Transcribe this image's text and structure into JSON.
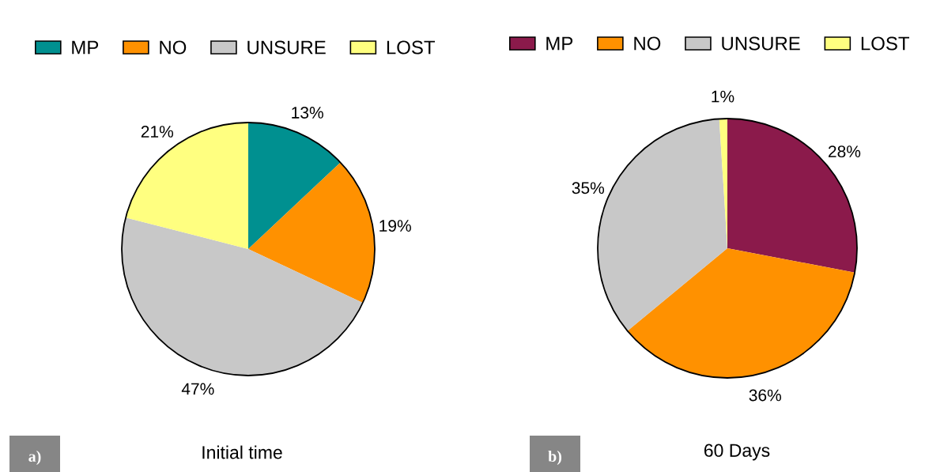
{
  "chart_data": [
    {
      "type": "pie",
      "title": "Initial time",
      "categories": [
        "MP",
        "NO",
        "UNSURE",
        "LOST"
      ],
      "values": [
        13,
        19,
        47,
        21
      ],
      "colors": [
        "#009090",
        "#ff9100",
        "#c8c8c8",
        "#ffff80"
      ],
      "value_labels": [
        "13%",
        "19%",
        "47%",
        "21%"
      ],
      "legend": "top",
      "annotations": [
        "a)"
      ]
    },
    {
      "type": "pie",
      "title": "60 Days",
      "categories": [
        "MP",
        "NO",
        "UNSURE",
        "LOST"
      ],
      "values": [
        28,
        36,
        35,
        1
      ],
      "colors": [
        "#8b1a4b",
        "#ff9100",
        "#c8c8c8",
        "#ffff80"
      ],
      "value_labels": [
        "28%",
        "36%",
        "35%",
        "1%"
      ],
      "legend": "top",
      "annotations": [
        "b)"
      ]
    }
  ]
}
